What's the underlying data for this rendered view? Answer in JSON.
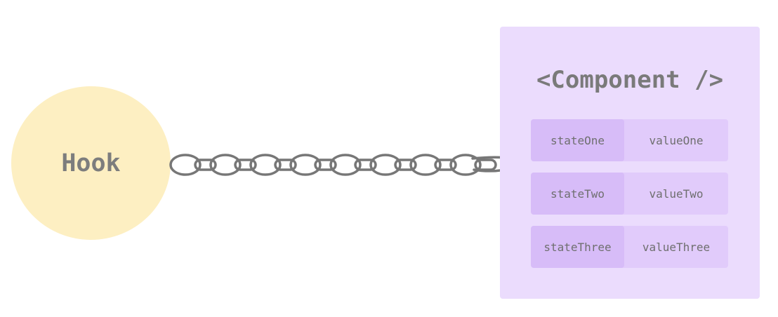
{
  "hook": {
    "label": "Hook",
    "color": "#fdefc2"
  },
  "chain": {
    "color": "#777777",
    "link_count": 8
  },
  "component": {
    "title": "<Component />",
    "color": "#ebdcfd",
    "states": [
      {
        "key": "stateOne",
        "value": "valueOne"
      },
      {
        "key": "stateTwo",
        "value": "valueTwo"
      },
      {
        "key": "stateThree",
        "value": "valueThree"
      }
    ]
  }
}
